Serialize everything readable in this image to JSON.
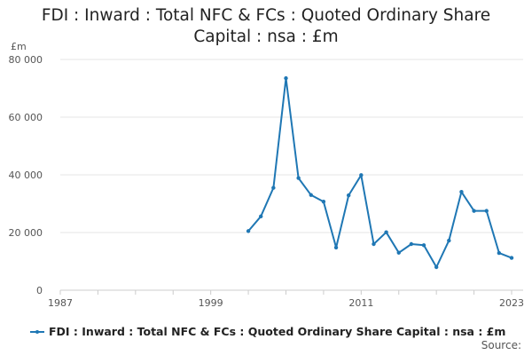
{
  "chart_data": {
    "type": "line",
    "title_line1": "FDI : Inward : Total NFC & FCs : Quoted Ordinary Share",
    "title_line2": "Capital : nsa : £m",
    "unit_label": "£m",
    "x_ticks": [
      "1987",
      "1999",
      "2011",
      "2023"
    ],
    "x_tick_values": [
      1987,
      1999,
      2011,
      2023
    ],
    "xlim": [
      1987,
      2023
    ],
    "y_ticks": [
      "0",
      "20 000",
      "40 000",
      "60 000",
      "80 000"
    ],
    "y_tick_values": [
      0,
      20000,
      40000,
      60000,
      80000
    ],
    "ylim": [
      0,
      80000
    ],
    "grid": true,
    "color": "#1f77b4",
    "series": [
      {
        "name": "FDI : Inward : Total NFC & FCs : Quoted Ordinary Share Capital : nsa : £m",
        "x": [
          2002,
          2003,
          2004,
          2005,
          2006,
          2007,
          2008,
          2009,
          2010,
          2011,
          2012,
          2013,
          2014,
          2015,
          2016,
          2017,
          2018,
          2019,
          2020,
          2021,
          2022,
          2023
        ],
        "values": [
          20500,
          25600,
          35500,
          73500,
          38900,
          33000,
          30700,
          14800,
          32900,
          39900,
          16000,
          20100,
          13000,
          16000,
          15600,
          8000,
          17200,
          34100,
          27500,
          27500,
          12900,
          11200
        ]
      }
    ],
    "legend": "bottom",
    "source_label": "Source:"
  }
}
